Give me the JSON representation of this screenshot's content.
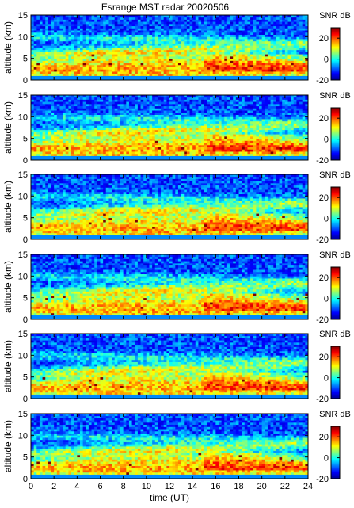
{
  "chart_data": {
    "type": "heatmap",
    "title": "Esrange MST radar 20020506",
    "xlabel": "time (UT)",
    "ylabel": "altitude (km)",
    "xlim": [
      0,
      24
    ],
    "ylim": [
      0,
      15
    ],
    "x_ticks": [
      0,
      2,
      4,
      6,
      8,
      10,
      12,
      14,
      16,
      18,
      20,
      22,
      24
    ],
    "y_ticks": [
      0,
      5,
      10,
      15
    ],
    "colorbar": {
      "label": "SNR dB",
      "range": [
        -20,
        30
      ],
      "ticks": [
        -20,
        0,
        20
      ],
      "colors": [
        "#00008f",
        "#0000ff",
        "#0080ff",
        "#00ffff",
        "#80ff80",
        "#ffff00",
        "#ff8000",
        "#ff0000",
        "#800000"
      ]
    },
    "panel_count": 6,
    "description_of_field": {
      "lower_layer_snr_db": 25,
      "upper_layer_snr_db": 0,
      "background_snr_db": -10,
      "no_data_below_km": 1
    }
  }
}
